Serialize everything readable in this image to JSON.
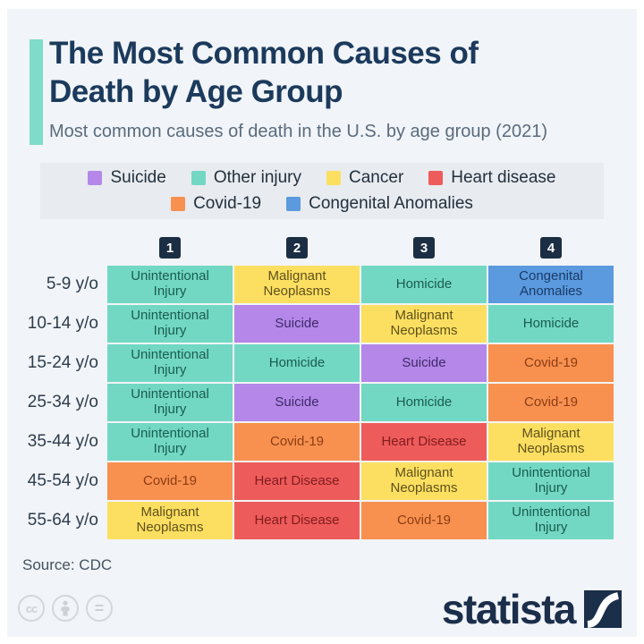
{
  "colors": {
    "page_background": "#ffffff",
    "card_background": "#f1f4f8",
    "legend_strip_background": "#e8ebef",
    "accent": "#7edcc8",
    "title_text": "#1b3a5c",
    "subtitle_text": "#5a6b7d",
    "badge_background": "#1b2e44",
    "brand_navy": "#1b2e4a"
  },
  "category_colors": {
    "suicide": {
      "fill": "#b487e9",
      "text": "#3f2a68"
    },
    "other_injury": {
      "fill": "#72d8c3",
      "text": "#1a5c50"
    },
    "cancer": {
      "fill": "#fcdf61",
      "text": "#5f511d"
    },
    "heart_disease": {
      "fill": "#ee5b5b",
      "text": "#801c1c"
    },
    "covid": {
      "fill": "#f8914f",
      "text": "#8c3c15"
    },
    "congenital": {
      "fill": "#5b9adf",
      "text": "#1a3a66"
    }
  },
  "header": {
    "title_line1": "The Most Common Causes of",
    "title_line2": "Death by Age Group",
    "subtitle": "Most common causes of death in the U.S. by age group (2021)"
  },
  "legend_rows": [
    [
      {
        "label": "Suicide",
        "category": "suicide"
      },
      {
        "label": "Other injury",
        "category": "other_injury"
      },
      {
        "label": "Cancer",
        "category": "cancer"
      },
      {
        "label": "Heart disease",
        "category": "heart_disease"
      }
    ],
    [
      {
        "label": "Covid-19",
        "category": "covid"
      },
      {
        "label": "Congenital Anomalies",
        "category": "congenital"
      }
    ]
  ],
  "chart_data": {
    "type": "table",
    "title": "The Most Common Causes of Death by Age Group",
    "subtitle": "Most common causes of death in the U.S. by age group (2021)",
    "column_headers": [
      "1",
      "2",
      "3",
      "4"
    ],
    "legend": [
      "Suicide",
      "Other injury",
      "Cancer",
      "Heart disease",
      "Covid-19",
      "Congenital Anomalies"
    ],
    "rows": [
      {
        "age": "5-9 y/o",
        "cells": [
          {
            "label": "Unintentional Injury",
            "category": "other_injury"
          },
          {
            "label": "Malignant Neoplasms",
            "category": "cancer"
          },
          {
            "label": "Homicide",
            "category": "other_injury"
          },
          {
            "label": "Congenital Anomalies",
            "category": "congenital"
          }
        ]
      },
      {
        "age": "10-14 y/o",
        "cells": [
          {
            "label": "Unintentional Injury",
            "category": "other_injury"
          },
          {
            "label": "Suicide",
            "category": "suicide"
          },
          {
            "label": "Malignant Neoplasms",
            "category": "cancer"
          },
          {
            "label": "Homicide",
            "category": "other_injury"
          }
        ]
      },
      {
        "age": "15-24 y/o",
        "cells": [
          {
            "label": "Unintentional Injury",
            "category": "other_injury"
          },
          {
            "label": "Homicide",
            "category": "other_injury"
          },
          {
            "label": "Suicide",
            "category": "suicide"
          },
          {
            "label": "Covid-19",
            "category": "covid"
          }
        ]
      },
      {
        "age": "25-34 y/o",
        "cells": [
          {
            "label": "Unintentional Injury",
            "category": "other_injury"
          },
          {
            "label": "Suicide",
            "category": "suicide"
          },
          {
            "label": "Homicide",
            "category": "other_injury"
          },
          {
            "label": "Covid-19",
            "category": "covid"
          }
        ]
      },
      {
        "age": "35-44 y/o",
        "cells": [
          {
            "label": "Unintentional Injury",
            "category": "other_injury"
          },
          {
            "label": "Covid-19",
            "category": "covid"
          },
          {
            "label": "Heart Disease",
            "category": "heart_disease"
          },
          {
            "label": "Malignant Neoplasms",
            "category": "cancer"
          }
        ]
      },
      {
        "age": "45-54 y/o",
        "cells": [
          {
            "label": "Covid-19",
            "category": "covid"
          },
          {
            "label": "Heart Disease",
            "category": "heart_disease"
          },
          {
            "label": "Malignant Neoplasms",
            "category": "cancer"
          },
          {
            "label": "Unintentional Injury",
            "category": "other_injury"
          }
        ]
      },
      {
        "age": "55-64 y/o",
        "cells": [
          {
            "label": "Malignant Neoplasms",
            "category": "cancer"
          },
          {
            "label": "Heart Disease",
            "category": "heart_disease"
          },
          {
            "label": "Covid-19",
            "category": "covid"
          },
          {
            "label": "Unintentional Injury",
            "category": "other_injury"
          }
        ]
      }
    ],
    "source": "Source: CDC"
  },
  "footer": {
    "source": "Source: CDC",
    "license_icons": [
      "cc-license-icon",
      "attribution-person-icon",
      "equals-icon"
    ],
    "cc_glyph": "cc",
    "equals_glyph": "=",
    "brand": "statista"
  }
}
